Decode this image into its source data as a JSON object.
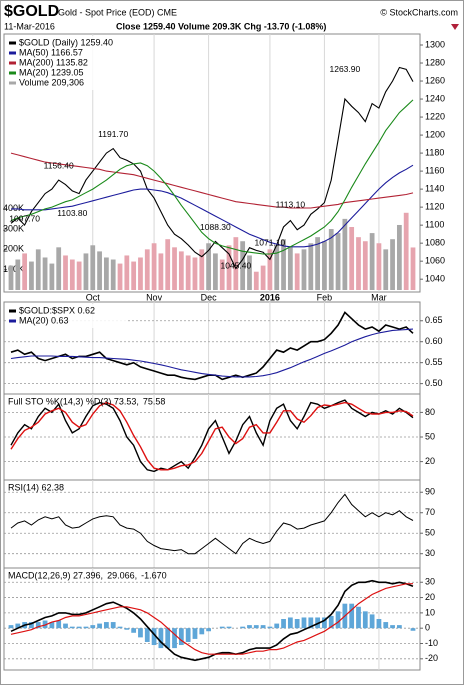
{
  "header": {
    "symbol": "$GOLD",
    "name": "Gold - Spot Price (EOD) CME",
    "date": "11-Mar-2016",
    "quote": "Close 1259.40  Volume 209.3K  Chg -13.70 (-1.08%)",
    "credit": "© StockCharts.com"
  },
  "chart_data": [
    {
      "type": "line",
      "xticks": [
        {
          "value": 12,
          "label": "Oct"
        },
        {
          "value": 21,
          "label": "Nov"
        },
        {
          "value": 29,
          "label": "Dec"
        },
        {
          "value": 38,
          "label": "2016"
        },
        {
          "value": 46,
          "label": "Feb"
        },
        {
          "value": 54,
          "label": "Mar"
        }
      ],
      "ylim": [
        1028,
        1310
      ],
      "yticks": [
        1040,
        1060,
        1080,
        1100,
        1120,
        1140,
        1160,
        1180,
        1200,
        1220,
        1240,
        1260,
        1280,
        1300
      ],
      "y2lim": [
        0,
        1250000
      ],
      "y2ticks": [
        {
          "value": 100000,
          "label": "100K"
        },
        {
          "value": 200000,
          "label": "200K"
        },
        {
          "value": 300000,
          "label": "300K"
        },
        {
          "value": 400000,
          "label": "400K"
        }
      ],
      "grid": false,
      "series": [
        {
          "name": "$GOLD (Daily) 1259.40",
          "color": "#000000",
          "values": [
            1102,
            1108,
            1100,
            1115,
            1125,
            1135,
            1140,
            1150,
            1145,
            1138,
            1135,
            1150,
            1160,
            1170,
            1180,
            1185,
            1175,
            1172,
            1168,
            1160,
            1140,
            1130,
            1115,
            1100,
            1090,
            1085,
            1078,
            1070,
            1065,
            1072,
            1082,
            1075,
            1068,
            1052,
            1062,
            1075,
            1072,
            1070,
            1062,
            1078,
            1098,
            1105,
            1095,
            1100,
            1112,
            1118,
            1125,
            1150,
            1195,
            1240,
            1232,
            1225,
            1215,
            1235,
            1230,
            1248,
            1260,
            1275,
            1273,
            1259.4
          ]
        },
        {
          "name": "MA(50) 1166.57",
          "color": "#1c1c9c",
          "values": [
            1118,
            1118,
            1117,
            1117,
            1117,
            1117,
            1118,
            1119,
            1120,
            1121,
            1123,
            1125,
            1127,
            1129,
            1131,
            1133,
            1135,
            1137,
            1139,
            1140,
            1140,
            1139,
            1138,
            1136,
            1133,
            1130,
            1126,
            1122,
            1118,
            1114,
            1110,
            1106,
            1102,
            1098,
            1094,
            1090,
            1087,
            1084,
            1081,
            1079,
            1077,
            1076,
            1076,
            1076,
            1077,
            1079,
            1082,
            1086,
            1092,
            1100,
            1108,
            1116,
            1124,
            1132,
            1140,
            1147,
            1153,
            1158,
            1162,
            1166.57
          ]
        },
        {
          "name": "MA(200) 1135.82",
          "color": "#b22234",
          "values": [
            1180,
            1178,
            1176,
            1174,
            1172,
            1170,
            1169,
            1168,
            1167,
            1166,
            1165,
            1164,
            1163,
            1162,
            1160,
            1159,
            1158,
            1157,
            1156,
            1154,
            1152,
            1150,
            1148,
            1146,
            1144,
            1142,
            1140,
            1138,
            1136,
            1134,
            1132,
            1130,
            1128,
            1126,
            1125,
            1124,
            1123,
            1122,
            1121,
            1120,
            1120,
            1119,
            1119,
            1119,
            1119,
            1120,
            1121,
            1122,
            1123,
            1125,
            1126,
            1127,
            1128,
            1129,
            1130,
            1131,
            1132,
            1133,
            1134,
            1135.82
          ]
        },
        {
          "name": "MA(20) 1239.05",
          "color": "#1a8a1a",
          "values": [
            1105,
            1108,
            1110,
            1112,
            1115,
            1118,
            1120,
            1123,
            1126,
            1128,
            1132,
            1136,
            1140,
            1145,
            1150,
            1156,
            1162,
            1166,
            1168,
            1169,
            1166,
            1160,
            1152,
            1143,
            1133,
            1122,
            1112,
            1102,
            1092,
            1085,
            1080,
            1077,
            1075,
            1073,
            1071,
            1070,
            1069,
            1068,
            1068,
            1069,
            1072,
            1076,
            1080,
            1084,
            1088,
            1093,
            1098,
            1105,
            1115,
            1128,
            1142,
            1155,
            1168,
            1180,
            1192,
            1205,
            1215,
            1225,
            1232,
            1239.05
          ]
        },
        {
          "name": "Volume 209,306",
          "color": "#a8a8a8",
          "down_color": "#e6a4ae",
          "style": "bar",
          "axis": "y2",
          "values": [
            120000,
            150000,
            180000,
            140000,
            200000,
            160000,
            130000,
            210000,
            170000,
            150000,
            140000,
            180000,
            220000,
            190000,
            160000,
            150000,
            130000,
            170000,
            140000,
            160000,
            200000,
            230000,
            180000,
            250000,
            210000,
            190000,
            170000,
            160000,
            200000,
            230000,
            180000,
            150000,
            220000,
            260000,
            240000,
            170000,
            90000,
            120000,
            200000,
            220000,
            250000,
            210000,
            180000,
            200000,
            230000,
            260000,
            240000,
            300000,
            280000,
            350000,
            310000,
            260000,
            240000,
            280000,
            230000,
            200000,
            250000,
            320000,
            380000,
            209306
          ]
        }
      ],
      "annotations": [
        {
          "x": 7,
          "value": 1156.4,
          "label": "1156.40"
        },
        {
          "x": 15,
          "value": 1191.7,
          "label": "1191.70"
        },
        {
          "x": 2,
          "value": 1097.7,
          "label": "1097.70"
        },
        {
          "x": 9,
          "value": 1103.8,
          "label": "1103.80"
        },
        {
          "x": 30,
          "value": 1088.3,
          "label": "1088.30"
        },
        {
          "x": 33,
          "value": 1045.4,
          "label": "1045.40"
        },
        {
          "x": 38,
          "value": 1071.1,
          "label": "1071.10"
        },
        {
          "x": 41,
          "value": 1113.1,
          "label": "1113.10"
        },
        {
          "x": 49,
          "value": 1263.9,
          "label": "1263.90"
        }
      ]
    },
    {
      "type": "line",
      "ylim": [
        0.48,
        0.69
      ],
      "yticks": [
        {
          "value": 0.5,
          "label": "0.50"
        },
        0.55,
        {
          "value": 0.6,
          "label": "0.60"
        },
        0.65
      ],
      "grid": true,
      "series": [
        {
          "name": "$GOLD:$SPX 0.62",
          "color": "#000000",
          "width": 1.6,
          "values": [
            0.575,
            0.58,
            0.57,
            0.575,
            0.56,
            0.555,
            0.56,
            0.565,
            0.57,
            0.56,
            0.565,
            0.565,
            0.57,
            0.575,
            0.56,
            0.555,
            0.55,
            0.545,
            0.55,
            0.54,
            0.535,
            0.53,
            0.525,
            0.52,
            0.52,
            0.515,
            0.512,
            0.51,
            0.515,
            0.52,
            0.52,
            0.51,
            0.515,
            0.52,
            0.515,
            0.52,
            0.525,
            0.54,
            0.56,
            0.58,
            0.575,
            0.585,
            0.58,
            0.59,
            0.6,
            0.6,
            0.605,
            0.62,
            0.64,
            0.67,
            0.655,
            0.64,
            0.63,
            0.635,
            0.625,
            0.64,
            0.635,
            0.63,
            0.635,
            0.62
          ]
        },
        {
          "name": "MA(20) 0.63",
          "color": "#1c1c9c",
          "values": [
            0.56,
            0.562,
            0.564,
            0.566,
            0.566,
            0.566,
            0.566,
            0.565,
            0.565,
            0.565,
            0.564,
            0.563,
            0.562,
            0.562,
            0.561,
            0.56,
            0.559,
            0.558,
            0.556,
            0.554,
            0.551,
            0.548,
            0.545,
            0.541,
            0.537,
            0.533,
            0.53,
            0.527,
            0.524,
            0.522,
            0.52,
            0.518,
            0.517,
            0.516,
            0.516,
            0.516,
            0.517,
            0.519,
            0.522,
            0.526,
            0.532,
            0.538,
            0.545,
            0.552,
            0.558,
            0.565,
            0.572,
            0.578,
            0.585,
            0.592,
            0.6,
            0.606,
            0.612,
            0.617,
            0.621,
            0.624,
            0.627,
            0.628,
            0.629,
            0.63
          ]
        }
      ]
    },
    {
      "type": "line",
      "title_parts": [
        {
          "text": "Full STO %K(14,3) %D(3) 73.53,",
          "color": "#000000"
        },
        {
          "text": "75.58",
          "color": "#dd1111"
        }
      ],
      "ylim": [
        0,
        100
      ],
      "yticks": [
        20,
        50,
        80
      ],
      "grid": true,
      "series": [
        {
          "color": "#000000",
          "width": 1.4,
          "values": [
            40,
            55,
            65,
            60,
            75,
            85,
            80,
            90,
            70,
            55,
            60,
            75,
            88,
            92,
            90,
            85,
            70,
            50,
            40,
            20,
            10,
            8,
            12,
            10,
            15,
            20,
            12,
            25,
            40,
            60,
            70,
            50,
            30,
            45,
            65,
            75,
            55,
            40,
            70,
            85,
            90,
            70,
            60,
            75,
            92,
            90,
            85,
            88,
            92,
            95,
            85,
            80,
            75,
            80,
            78,
            82,
            78,
            85,
            80,
            73.53
          ]
        },
        {
          "color": "#dd1111",
          "width": 1.4,
          "values": [
            35,
            48,
            58,
            62,
            68,
            78,
            82,
            85,
            80,
            68,
            62,
            65,
            78,
            88,
            92,
            89,
            82,
            68,
            52,
            38,
            22,
            12,
            10,
            10,
            12,
            15,
            16,
            20,
            30,
            45,
            60,
            62,
            50,
            42,
            48,
            62,
            65,
            55,
            55,
            68,
            82,
            82,
            72,
            68,
            76,
            86,
            89,
            88,
            90,
            92,
            90,
            85,
            80,
            78,
            78,
            80,
            80,
            82,
            81,
            75.58
          ]
        }
      ]
    },
    {
      "type": "line",
      "title_parts": [
        {
          "text": "RSI(14) 62.38",
          "color": "#000000"
        }
      ],
      "ylim": [
        18,
        100
      ],
      "yticks": [
        30,
        50,
        70,
        90
      ],
      "grid": true,
      "series": [
        {
          "color": "#000000",
          "width": 1,
          "values": [
            55,
            60,
            62,
            58,
            63,
            66,
            64,
            66,
            58,
            55,
            56,
            60,
            64,
            66,
            67,
            66,
            58,
            55,
            54,
            50,
            42,
            38,
            35,
            34,
            33,
            34,
            30,
            30,
            35,
            40,
            45,
            40,
            35,
            30,
            40,
            45,
            42,
            40,
            42,
            52,
            60,
            58,
            54,
            55,
            58,
            60,
            62,
            70,
            80,
            88,
            78,
            72,
            66,
            70,
            66,
            70,
            68,
            72,
            66,
            62.38
          ]
        }
      ]
    },
    {
      "type": "line",
      "title_parts": [
        {
          "text": "MACD(12,26,9) 27.396,",
          "color": "#000000"
        },
        {
          "text": "29.066,",
          "color": "#dd1111"
        },
        {
          "text": "-1.670",
          "color": "#3a8fc8"
        }
      ],
      "ylim": [
        -26,
        38
      ],
      "yticks": [
        -20,
        -10,
        0,
        10,
        20,
        30
      ],
      "grid": true,
      "series": [
        {
          "color": "#5ea6d8",
          "style": "bar",
          "values": [
            2,
            3,
            4,
            4,
            4,
            5,
            4,
            5,
            3,
            1,
            1,
            1,
            2,
            3,
            4,
            4,
            1,
            -1,
            -3,
            -6,
            -9,
            -11,
            -13,
            -13,
            -13,
            -11,
            -9,
            -7,
            -4,
            -2,
            0,
            1,
            1,
            0,
            1,
            2,
            2,
            2,
            1,
            3,
            6,
            7,
            6,
            7,
            7,
            7,
            7,
            8,
            11,
            16,
            16,
            14,
            11,
            9,
            6,
            4,
            2,
            2,
            0,
            -1.67
          ]
        },
        {
          "color": "#000000",
          "width": 1.6,
          "values": [
            -2,
            0,
            2,
            3,
            5,
            7,
            8,
            10,
            10,
            9,
            9,
            10,
            12,
            14,
            16,
            17,
            15,
            13,
            10,
            6,
            1,
            -4,
            -9,
            -13,
            -17,
            -19,
            -20,
            -21,
            -20,
            -19,
            -17,
            -16,
            -16,
            -17,
            -16,
            -14,
            -13,
            -13,
            -13,
            -11,
            -7,
            -4,
            -3,
            -1,
            1,
            3,
            5,
            9,
            15,
            24,
            28,
            30,
            30,
            31,
            30,
            30,
            29,
            30,
            29,
            27.396
          ]
        },
        {
          "color": "#dd1111",
          "width": 1.2,
          "values": [
            -4,
            -3,
            -2,
            -1,
            1,
            2,
            4,
            5,
            7,
            8,
            8,
            9,
            10,
            11,
            12,
            13,
            14,
            14,
            13,
            12,
            10,
            7,
            4,
            0,
            -4,
            -8,
            -11,
            -14,
            -16,
            -17,
            -17,
            -17,
            -17,
            -17,
            -17,
            -16,
            -15,
            -15,
            -14,
            -14,
            -13,
            -11,
            -9,
            -8,
            -6,
            -4,
            -2,
            1,
            4,
            8,
            12,
            16,
            19,
            22,
            24,
            26,
            27,
            28,
            29,
            29.066
          ]
        }
      ]
    }
  ]
}
